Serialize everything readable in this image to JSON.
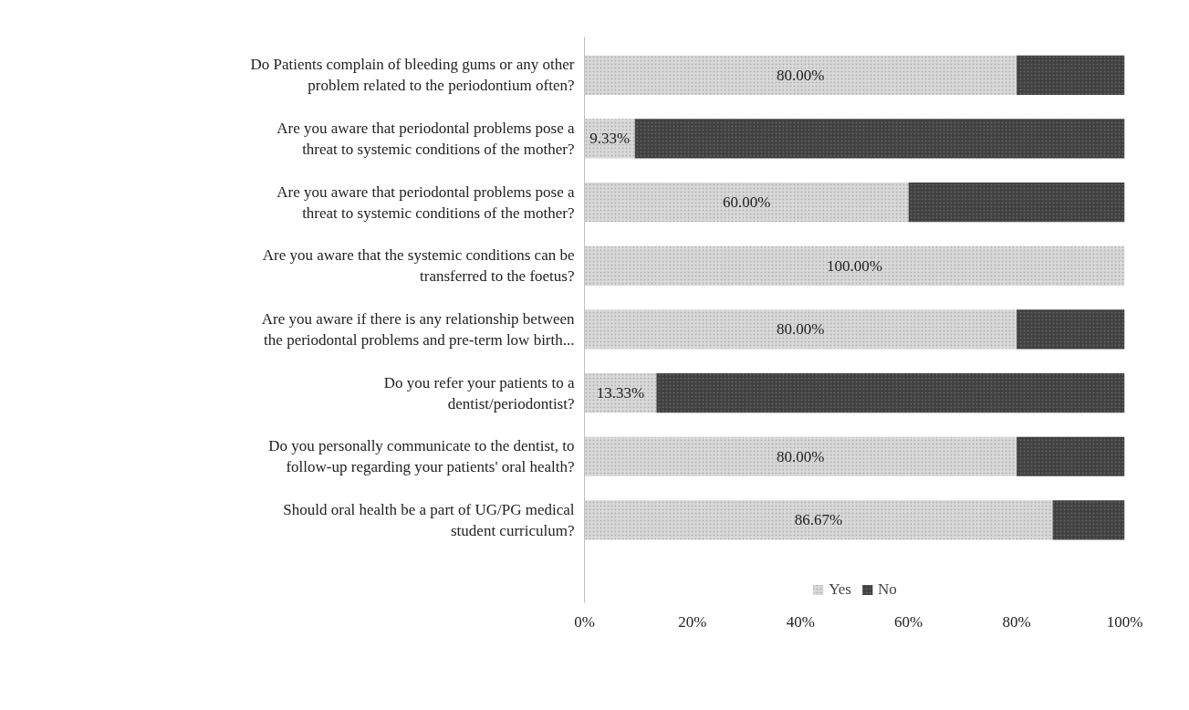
{
  "chart_data": {
    "type": "bar",
    "orientation": "horizontal",
    "stacked": true,
    "categories": [
      "Do Patients complain of bleeding gums or any other problem related to the periodontium often?",
      "Are you aware that periodontal problems pose a threat to systemic conditions of the mother?",
      "Are you aware that periodontal problems pose a threat to systemic conditions of the mother?",
      "Are you aware that the systemic conditions can be transferred to the foetus?",
      "Are you aware if there is any relationship between the periodontal problems and pre-term low birth...",
      "Do you refer your patients to a dentist/periodontist?",
      "Do you personally communicate to the dentist, to follow-up regarding your patients' oral health?",
      "Should oral health be a part of UG/PG medical student curriculum?"
    ],
    "series": [
      {
        "name": "Yes",
        "color": "#d9d9d9",
        "values": [
          80,
          9.33,
          60,
          100,
          80,
          13.33,
          80,
          86.67
        ],
        "value_labels": [
          "80.00%",
          "9.33%",
          "60.00%",
          "100.00%",
          "80.00%",
          "13.33%",
          "80.00%",
          "86.67%"
        ]
      },
      {
        "name": "No",
        "color": "#404040",
        "values": [
          20,
          90.67,
          40,
          0,
          20,
          86.67,
          20,
          13.33
        ]
      }
    ],
    "xlim": [
      0,
      100
    ],
    "xticks": [
      {
        "value": 0,
        "label": "0%"
      },
      {
        "value": 20,
        "label": "20%"
      },
      {
        "value": 40,
        "label": "40%"
      },
      {
        "value": 60,
        "label": "60%"
      },
      {
        "value": 80,
        "label": "80%"
      },
      {
        "value": 100,
        "label": "100%"
      }
    ],
    "grid": false,
    "legend": "bottom"
  }
}
